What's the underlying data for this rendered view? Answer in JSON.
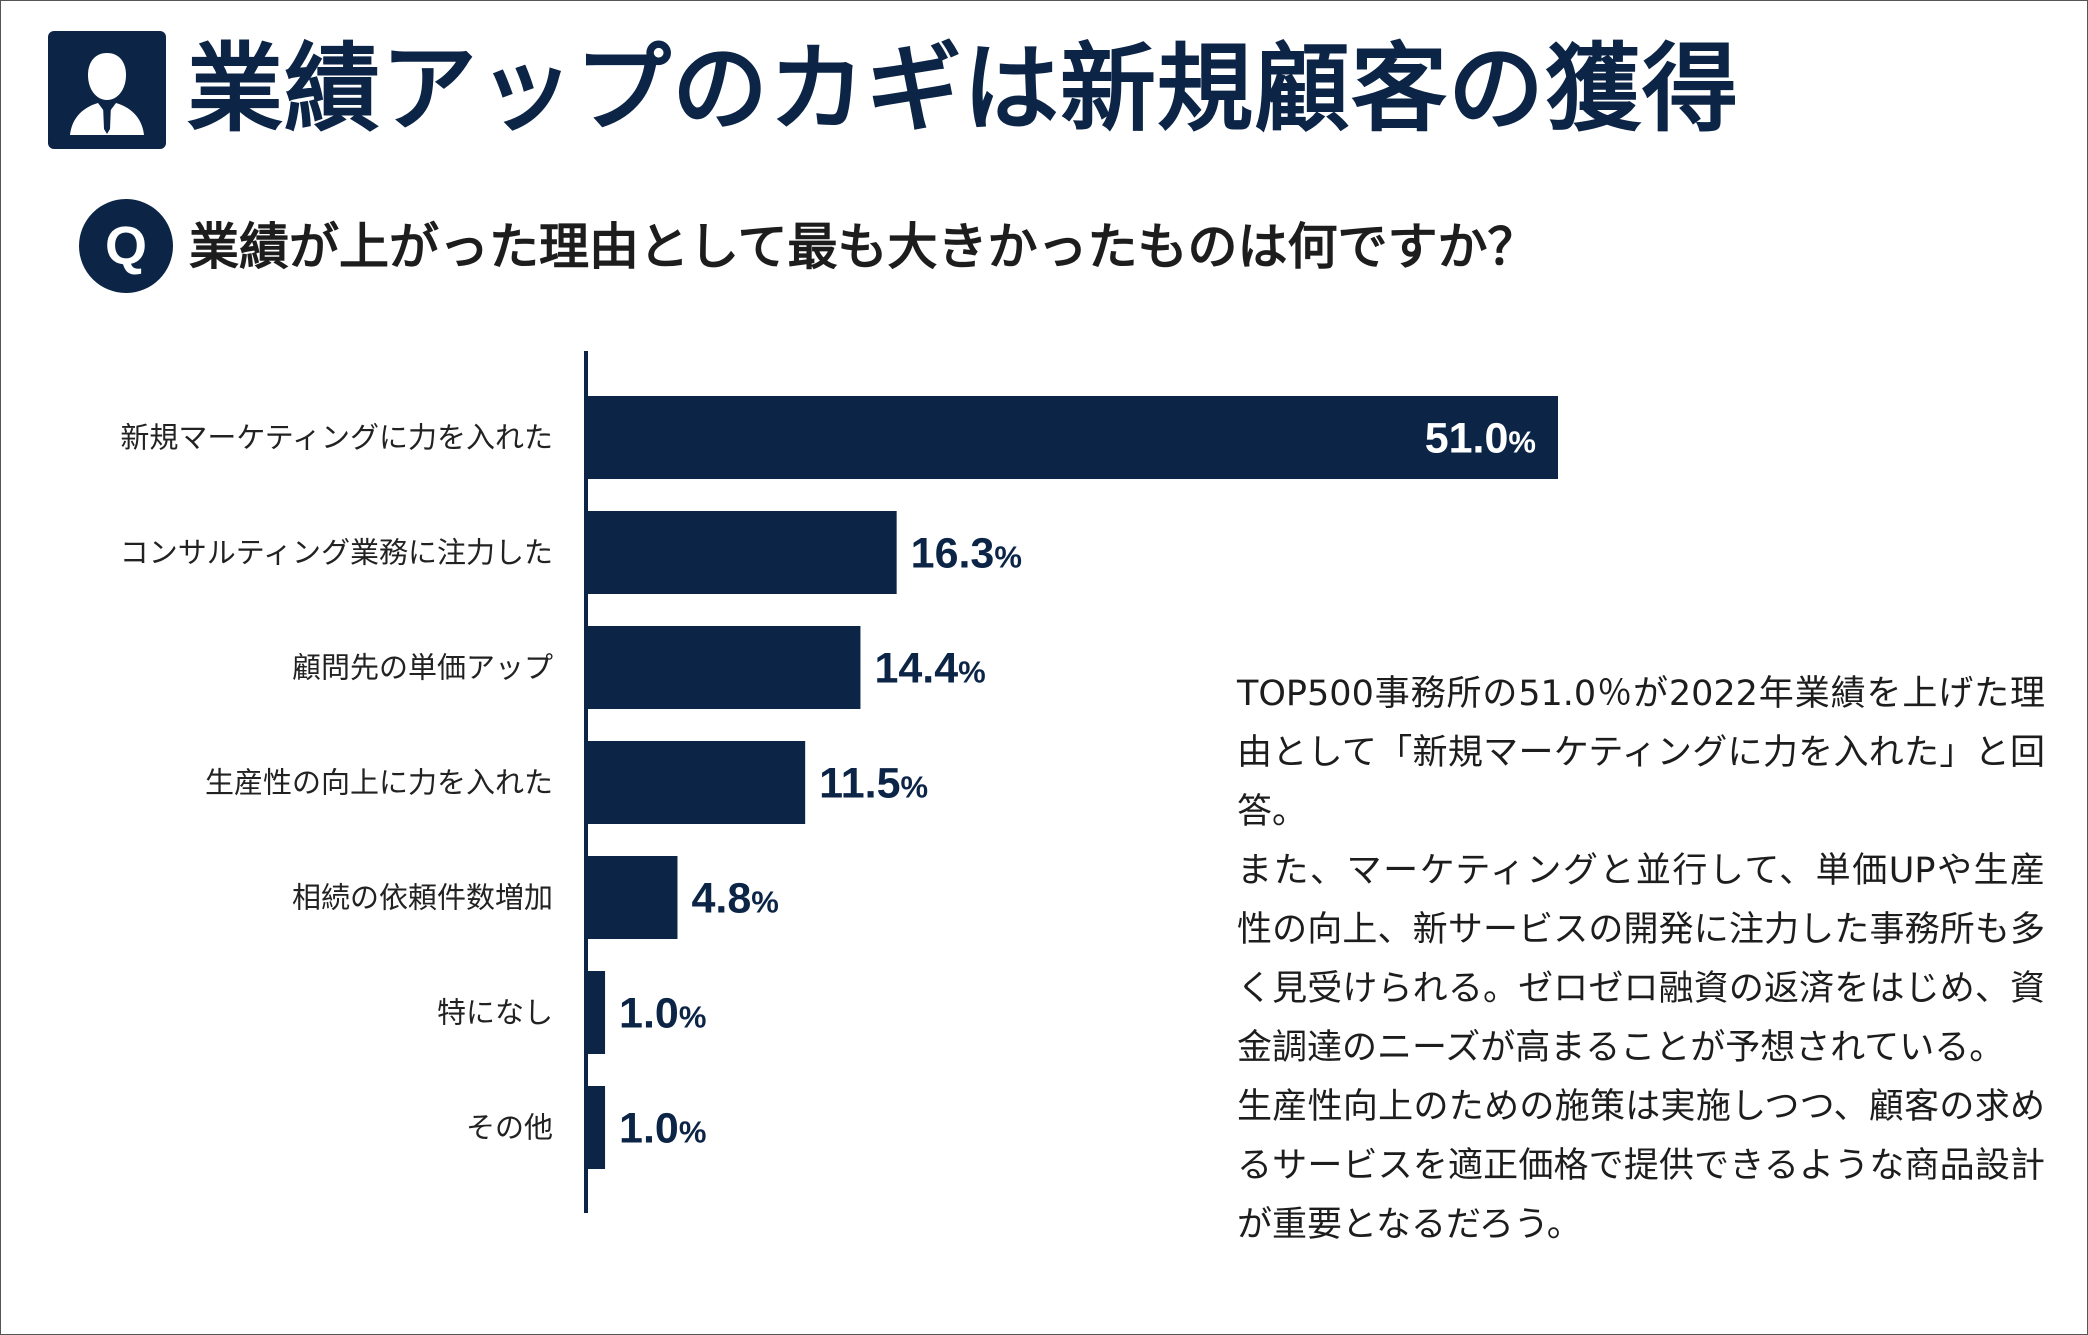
{
  "header": {
    "title": "業績アップのカギは新規顧客の獲得",
    "icon": "businessman-icon"
  },
  "question": {
    "badge": "Q",
    "text": "業績が上がった理由として最も大きかったものは何ですか？"
  },
  "colors": {
    "navy": "#0c2547",
    "bar_label_inside": "#ffffff"
  },
  "chart_data": {
    "type": "bar",
    "orientation": "horizontal",
    "categories": [
      "新規マーケティングに力を入れた",
      "コンサルティング業務に注力した",
      "顧問先の単価アップ",
      "生産性の向上に力を入れた",
      "相続の依頼件数増加",
      "特になし",
      "その他"
    ],
    "values": [
      51.0,
      16.3,
      14.4,
      11.5,
      4.8,
      1.0,
      1.0
    ],
    "value_labels": [
      "51.0",
      "16.3",
      "14.4",
      "11.5",
      "4.8",
      "1.0",
      "1.0"
    ],
    "unit": "%",
    "xlim": [
      0,
      100
    ],
    "grid": false,
    "legend": "none",
    "title": ""
  },
  "commentary": {
    "paragraphs": [
      "TOP500事務所の51.0％が2022年業績を上げた理由として「新規マーケティングに力を入れた」と回答。",
      "また、マーケティングと並行して、単価UPや生産性の向上、新サービスの開発に注力した事務所も多く見受けられる。ゼロゼロ融資の返済をはじめ、資金調達のニーズが高まることが予想されている。",
      "生産性向上のための施策は実施しつつ、顧客の求めるサービスを適正価格で提供できるような商品設計が重要となるだろう。"
    ]
  }
}
